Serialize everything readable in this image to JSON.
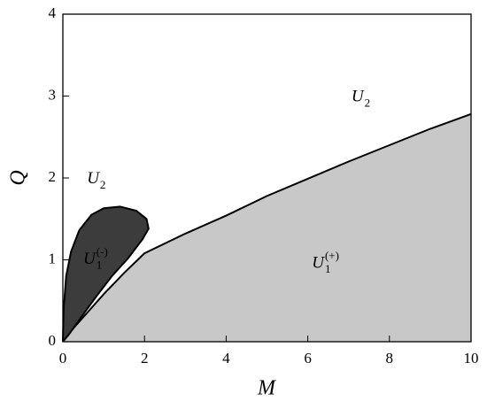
{
  "chart_data": {
    "type": "region",
    "xlabel": "M",
    "ylabel": "Q",
    "xlim": [
      0,
      10
    ],
    "ylim": [
      0,
      4
    ],
    "xticks": [
      0,
      2,
      4,
      6,
      8,
      10
    ],
    "yticks": [
      0,
      1,
      2,
      3,
      4
    ],
    "series": [
      {
        "color": "#c8c8c8",
        "x": [
          0,
          0.25,
          0.5,
          1,
          1.5,
          2,
          3,
          4,
          5,
          6,
          7,
          8,
          9,
          10
        ],
        "y": [
          0,
          0.16,
          0.3,
          0.58,
          0.84,
          1.08,
          1.32,
          1.54,
          1.78,
          1.99,
          2.2,
          2.4,
          2.6,
          2.78
        ]
      },
      {
        "color": "#3c3c3c",
        "x": [
          0,
          0.02,
          0.08,
          0.2,
          0.4,
          0.7,
          1.0,
          1.4,
          1.8,
          2.05,
          2.1,
          1.95,
          1.6,
          1.2,
          0.8,
          0.45,
          0.15,
          0
        ],
        "y": [
          0,
          0.4,
          0.8,
          1.1,
          1.36,
          1.55,
          1.63,
          1.65,
          1.6,
          1.5,
          1.38,
          1.25,
          1.02,
          0.8,
          0.54,
          0.3,
          0.09,
          0
        ]
      }
    ],
    "annotations": [
      {
        "text": "U",
        "sub": "2",
        "color": "#1a1aa8",
        "x": 7.07,
        "y": 2.98
      },
      {
        "text": "U",
        "sub": "2",
        "color": "#1a1aa8",
        "x": 0.59,
        "y": 1.98
      },
      {
        "text": "U",
        "sub": "1",
        "sup": "(-)",
        "color": "#e0d020",
        "x": 0.5,
        "y": 1.0
      },
      {
        "text": "U",
        "sub": "1",
        "sup": "(+)",
        "color": "#1a1aa8",
        "x": 6.1,
        "y": 0.95
      }
    ]
  }
}
